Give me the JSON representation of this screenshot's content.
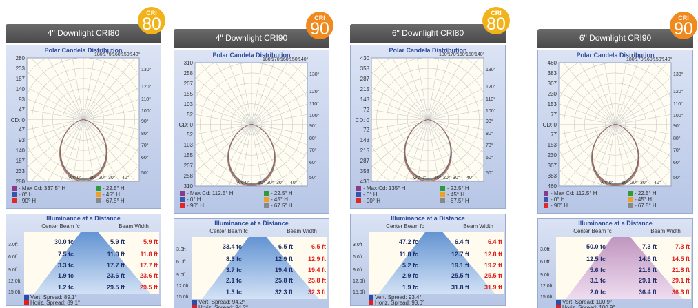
{
  "panels": [
    {
      "title": "4\" Downlight CRI80",
      "badge": {
        "label": "CRI",
        "value": "80",
        "color": "#f2b21a"
      },
      "polar": {
        "title": "Polar Candela Distribution",
        "cd_labels": [
          "280",
          "233",
          "187",
          "140",
          "93",
          "47",
          "CD: 0",
          "47",
          "93",
          "140",
          "187",
          "233",
          "280"
        ],
        "top_angles": [
          "180°",
          "170°",
          "160°",
          "150°",
          "140°"
        ],
        "right_angles": [
          "130°",
          "120°",
          "110°",
          "100°",
          "90°",
          "80°",
          "70°",
          "60°",
          "50°"
        ],
        "bottom_angles": [
          "VA: 0°",
          "10°",
          "20°",
          "30°",
          "40°"
        ],
        "legend": [
          "- Max Cd: 337.5° H",
          "- 22.5° H",
          "- 0° H",
          "- 45° H",
          "- 90° H",
          "- 67.5° H"
        ]
      },
      "illuminance": {
        "title": "Illuminance at a Distance",
        "headers": [
          "Center Beam fc",
          "Beam Width"
        ],
        "rows": [
          {
            "distance": "3.0ft",
            "center": "30.0 fc",
            "vert": "5.9 ft",
            "horiz": "5.9 ft"
          },
          {
            "distance": "6.0ft",
            "center": "7.5 fc",
            "vert": "11.8 ft",
            "horiz": "11.8 ft"
          },
          {
            "distance": "9.0ft",
            "center": "3.3 fc",
            "vert": "17.7 ft",
            "horiz": "17.7 ft"
          },
          {
            "distance": "12.0ft",
            "center": "1.9 fc",
            "vert": "23.6 ft",
            "horiz": "23.6 ft"
          },
          {
            "distance": "15.0ft",
            "center": "1.2 fc",
            "vert": "29.5 ft",
            "horiz": "29.5 ft"
          }
        ],
        "spreads": [
          "Vert. Spread: 89.1°",
          "Horiz. Spread: 89.1°"
        ]
      }
    },
    {
      "title": "4\" Downlight CRI90",
      "badge": {
        "label": "CRI",
        "value": "90",
        "color": "#f08a1e"
      },
      "polar": {
        "title": "Polar Candela Distribution",
        "cd_labels": [
          "310",
          "258",
          "207",
          "155",
          "103",
          "52",
          "CD: 0",
          "52",
          "103",
          "155",
          "207",
          "258",
          "310"
        ],
        "top_angles": [
          "180°",
          "170°",
          "160°",
          "150°",
          "140°"
        ],
        "right_angles": [
          "130°",
          "120°",
          "110°",
          "100°",
          "90°",
          "80°",
          "70°",
          "60°",
          "50°"
        ],
        "bottom_angles": [
          "VA: 0°",
          "10°",
          "20°",
          "30°",
          "40°"
        ],
        "legend": [
          "- Max Cd: 112.5° H",
          "- 22.5° H",
          "- 0° H",
          "- 45° H",
          "- 90° H",
          "- 67.5° H"
        ]
      },
      "illuminance": {
        "title": "Illuminance at a Distance",
        "headers": [
          "Center Beam fc",
          "Beam Width"
        ],
        "rows": [
          {
            "distance": "3.0ft",
            "center": "33.4 fc",
            "vert": "6.5 ft",
            "horiz": "6.5 ft"
          },
          {
            "distance": "6.0ft",
            "center": "8.3 fc",
            "vert": "12.9 ft",
            "horiz": "12.9 ft"
          },
          {
            "distance": "9.0ft",
            "center": "3.7 fc",
            "vert": "19.4 ft",
            "horiz": "19.4 ft"
          },
          {
            "distance": "12.0ft",
            "center": "2.1 fc",
            "vert": "25.8 ft",
            "horiz": "25.8 ft"
          },
          {
            "distance": "15.0ft",
            "center": "1.3 fc",
            "vert": "32.3 ft",
            "horiz": "32.3 ft"
          }
        ],
        "spreads": [
          "Vert. Spread: 94.2°",
          "Horiz. Spread: 94.2°"
        ]
      }
    },
    {
      "title": "6\" Downlight CRI80",
      "badge": {
        "label": "CRI",
        "value": "80",
        "color": "#f2b21a"
      },
      "polar": {
        "title": "Polar Candela Distribution",
        "cd_labels": [
          "430",
          "358",
          "287",
          "215",
          "143",
          "72",
          "CD: 0",
          "72",
          "143",
          "215",
          "287",
          "358",
          "430"
        ],
        "top_angles": [
          "180°",
          "170°",
          "160°",
          "150°",
          "140°"
        ],
        "right_angles": [
          "130°",
          "120°",
          "110°",
          "100°",
          "90°",
          "80°",
          "70°",
          "60°",
          "50°"
        ],
        "bottom_angles": [
          "VA: 0°",
          "10°",
          "20°",
          "30°",
          "40°"
        ],
        "legend": [
          "- Max Cd: 135° H",
          "- 22.5° H",
          "- 0° H",
          "- 45° H",
          "- 90° H",
          "- 67.5° H"
        ]
      },
      "illuminance": {
        "title": "Illuminance at a Distance",
        "headers": [
          "Center Beam fc",
          "Beam Width"
        ],
        "rows": [
          {
            "distance": "3.0ft",
            "center": "47.2 fc",
            "vert": "6.4 ft",
            "horiz": "6.4 ft"
          },
          {
            "distance": "6.0ft",
            "center": "11.8 fc",
            "vert": "12.7 ft",
            "horiz": "12.8 ft"
          },
          {
            "distance": "9.0ft",
            "center": "5.2 fc",
            "vert": "19.1 ft",
            "horiz": "19.2 ft"
          },
          {
            "distance": "12.0ft",
            "center": "2.9 fc",
            "vert": "25.5 ft",
            "horiz": "25.5 ft"
          },
          {
            "distance": "15.0ft",
            "center": "1.9 fc",
            "vert": "31.8 ft",
            "horiz": "31.9 ft"
          }
        ],
        "spreads": [
          "Vert. Spread: 93.4°",
          "Horiz. Spread: 93.6°"
        ]
      }
    },
    {
      "title": "6\" Downlight CRI90",
      "badge": {
        "label": "CRI",
        "value": "90",
        "color": "#f08a1e"
      },
      "polar": {
        "title": "Polar Candela Distribution",
        "cd_labels": [
          "460",
          "383",
          "307",
          "230",
          "153",
          "77",
          "CD: 0",
          "77",
          "153",
          "230",
          "307",
          "383",
          "460"
        ],
        "top_angles": [
          "180°",
          "170°",
          "160°",
          "150°",
          "140°"
        ],
        "right_angles": [
          "130°",
          "120°",
          "110°",
          "100°",
          "90°",
          "80°",
          "70°",
          "60°",
          "50°"
        ],
        "bottom_angles": [
          "VA: 0°",
          "10°",
          "20°",
          "30°",
          "40°"
        ],
        "legend": [
          "- Max Cd: 112.5° H",
          "- 22.5° H",
          "- 0° H",
          "- 45° H",
          "- 90° H",
          "- 67.5° H"
        ]
      },
      "illuminance": {
        "title": "Illuminance at a Distance",
        "headers": [
          "Center Beam fc",
          "Beam Width"
        ],
        "rows": [
          {
            "distance": "3.0ft",
            "center": "50.0 fc",
            "vert": "7.3 ft",
            "horiz": "7.3 ft"
          },
          {
            "distance": "6.0ft",
            "center": "12.5 fc",
            "vert": "14.5 ft",
            "horiz": "14.5 ft"
          },
          {
            "distance": "9.0ft",
            "center": "5.6 fc",
            "vert": "21.8 ft",
            "horiz": "21.8 ft"
          },
          {
            "distance": "12.0ft",
            "center": "3.1 fc",
            "vert": "29.1 ft",
            "horiz": "29.1 ft"
          },
          {
            "distance": "15.0ft",
            "center": "2.0 fc",
            "vert": "36.4 ft",
            "horiz": "36.3 ft"
          }
        ],
        "spreads": [
          "Vert. Spread: 100.9°",
          "Horiz. Spread: 100.9°"
        ]
      }
    }
  ]
}
